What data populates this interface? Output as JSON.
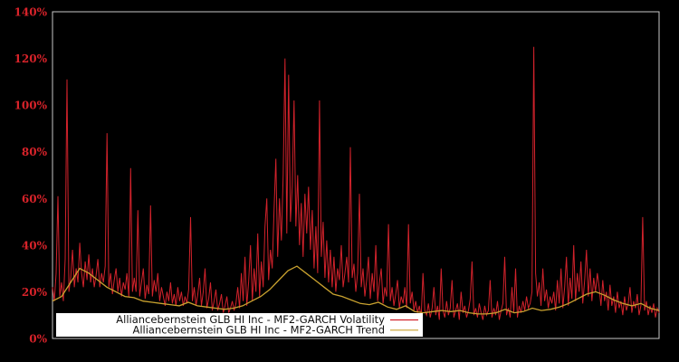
{
  "chart_data": {
    "type": "line",
    "title": "",
    "xlabel": "",
    "ylabel": "",
    "units": "percent",
    "ylim": [
      0,
      140
    ],
    "ytick_labels": [
      "0%",
      "20%",
      "40%",
      "60%",
      "80%",
      "100%",
      "120%",
      "140%"
    ],
    "xtick_labels": [],
    "grid": false,
    "legend_position": "bottom-center-inside",
    "background_color": "#000000",
    "frame_color": "#c8c8c8",
    "axis_label_color": "#d8232a",
    "legend_box_color": "#ffffff",
    "series": [
      {
        "id": "volatility",
        "legend": "Alliancebernstein GLB HI Inc - MF2-GARCH Volatility",
        "color": "#d1222b",
        "stroke_width": 1,
        "values": [
          22,
          16,
          28,
          61,
          18,
          24,
          16,
          34,
          111,
          20,
          26,
          38,
          22,
          30,
          24,
          41,
          28,
          22,
          33,
          25,
          36,
          24,
          30,
          22,
          27,
          34,
          22,
          28,
          24,
          31,
          88,
          22,
          28,
          19,
          25,
          30,
          20,
          26,
          18,
          24,
          21,
          28,
          18,
          73,
          20,
          26,
          20,
          55,
          18,
          24,
          30,
          17,
          23,
          19,
          57,
          18,
          25,
          20,
          28,
          16,
          22,
          18,
          14,
          20,
          16,
          24,
          15,
          19,
          14,
          22,
          16,
          20,
          14,
          18,
          15,
          21,
          52,
          16,
          22,
          14,
          19,
          26,
          14,
          20,
          30,
          13,
          17,
          24,
          12,
          16,
          21,
          12,
          15,
          19,
          11,
          14,
          18,
          11,
          13,
          16,
          12,
          15,
          22,
          13,
          28,
          16,
          35,
          14,
          24,
          40,
          16,
          30,
          20,
          45,
          18,
          33,
          22,
          48,
          60,
          25,
          38,
          30,
          55,
          77,
          35,
          60,
          42,
          70,
          120,
          45,
          113,
          50,
          65,
          102,
          48,
          70,
          40,
          58,
          35,
          62,
          45,
          65,
          38,
          55,
          30,
          48,
          28,
          102,
          35,
          50,
          26,
          42,
          24,
          38,
          22,
          35,
          20,
          30,
          25,
          40,
          22,
          28,
          35,
          24,
          82,
          26,
          32,
          20,
          28,
          62,
          22,
          30,
          18,
          25,
          35,
          17,
          28,
          20,
          40,
          16,
          24,
          30,
          15,
          22,
          18,
          49,
          16,
          22,
          14,
          19,
          25,
          13,
          18,
          15,
          22,
          13,
          49,
          15,
          20,
          12,
          16,
          11,
          14,
          9,
          28,
          12,
          10,
          15,
          9,
          13,
          22,
          10,
          14,
          8,
          30,
          12,
          9,
          16,
          10,
          13,
          25,
          9,
          12,
          15,
          8,
          20,
          11,
          14,
          9,
          12,
          17,
          33,
          10,
          13,
          9,
          15,
          11,
          8,
          14,
          10,
          12,
          25,
          9,
          13,
          10,
          16,
          8,
          12,
          15,
          35,
          10,
          13,
          9,
          22,
          11,
          30,
          9,
          14,
          11,
          16,
          12,
          18,
          13,
          15,
          20,
          125,
          28,
          18,
          24,
          14,
          30,
          16,
          21,
          13,
          18,
          15,
          20,
          12,
          25,
          15,
          30,
          13,
          22,
          35,
          14,
          26,
          17,
          40,
          16,
          28,
          20,
          33,
          15,
          25,
          38,
          18,
          30,
          16,
          26,
          20,
          28,
          22,
          14,
          25,
          16,
          20,
          12,
          23,
          14,
          18,
          11,
          20,
          13,
          16,
          10,
          18,
          12,
          15,
          22,
          11,
          16,
          13,
          19,
          10,
          14,
          52,
          12,
          16,
          10,
          14,
          11,
          15,
          9,
          13,
          11
        ]
      },
      {
        "id": "trend",
        "legend": "Alliancebernstein GLB HI Inc - MF2-GARCH Trend",
        "color": "#c9a22f",
        "stroke_width": 1.3,
        "values": [
          16,
          18,
          24,
          30,
          28,
          25,
          22,
          20,
          18,
          17.5,
          16,
          15.5,
          15,
          14.5,
          14,
          15.5,
          14,
          13.5,
          13,
          12.5,
          13,
          14,
          16,
          18,
          21,
          25,
          29,
          31,
          28,
          25,
          22,
          19,
          18,
          16.5,
          15,
          14.5,
          15.5,
          13.5,
          12.5,
          14,
          11.5,
          11,
          11.5,
          12,
          11.5,
          12,
          11,
          10.5,
          10.5,
          11,
          12.5,
          11,
          11.5,
          13,
          12,
          12.5,
          13.5,
          15,
          17,
          19,
          20,
          18.5,
          16.5,
          15,
          14,
          15,
          13,
          12
        ]
      }
    ]
  }
}
